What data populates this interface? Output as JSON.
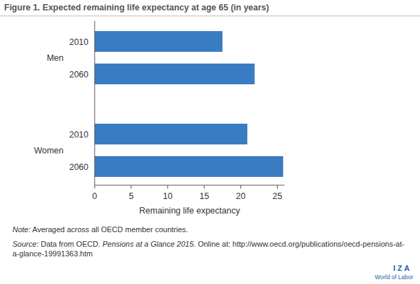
{
  "chart_data": {
    "type": "bar",
    "orientation": "horizontal",
    "title": "Figure 1. Expected remaining life expectancy at age 65 (in years)",
    "x_label": "Remaining life expectancy",
    "groups": [
      "Men",
      "Men",
      "Women",
      "Women"
    ],
    "categories": [
      "2010",
      "2060",
      "2010",
      "2060"
    ],
    "values": [
      17.5,
      21.9,
      20.9,
      25.8
    ],
    "color": "#3a7cc2",
    "xlim": [
      0,
      26
    ],
    "xticks": [
      0,
      5,
      10,
      15,
      20,
      25
    ],
    "grid": false,
    "note": [
      "Note:",
      " Averaged across all OECD member countries."
    ],
    "source": [
      "Source:",
      " Data from OECD. ",
      "Pensions at a Glance 2015",
      ". Online at: http://www.oecd.org/publications/oecd-pensions-at-a-glance-19991363.htm"
    ],
    "logo": [
      "IZA",
      "World of Labor"
    ]
  }
}
